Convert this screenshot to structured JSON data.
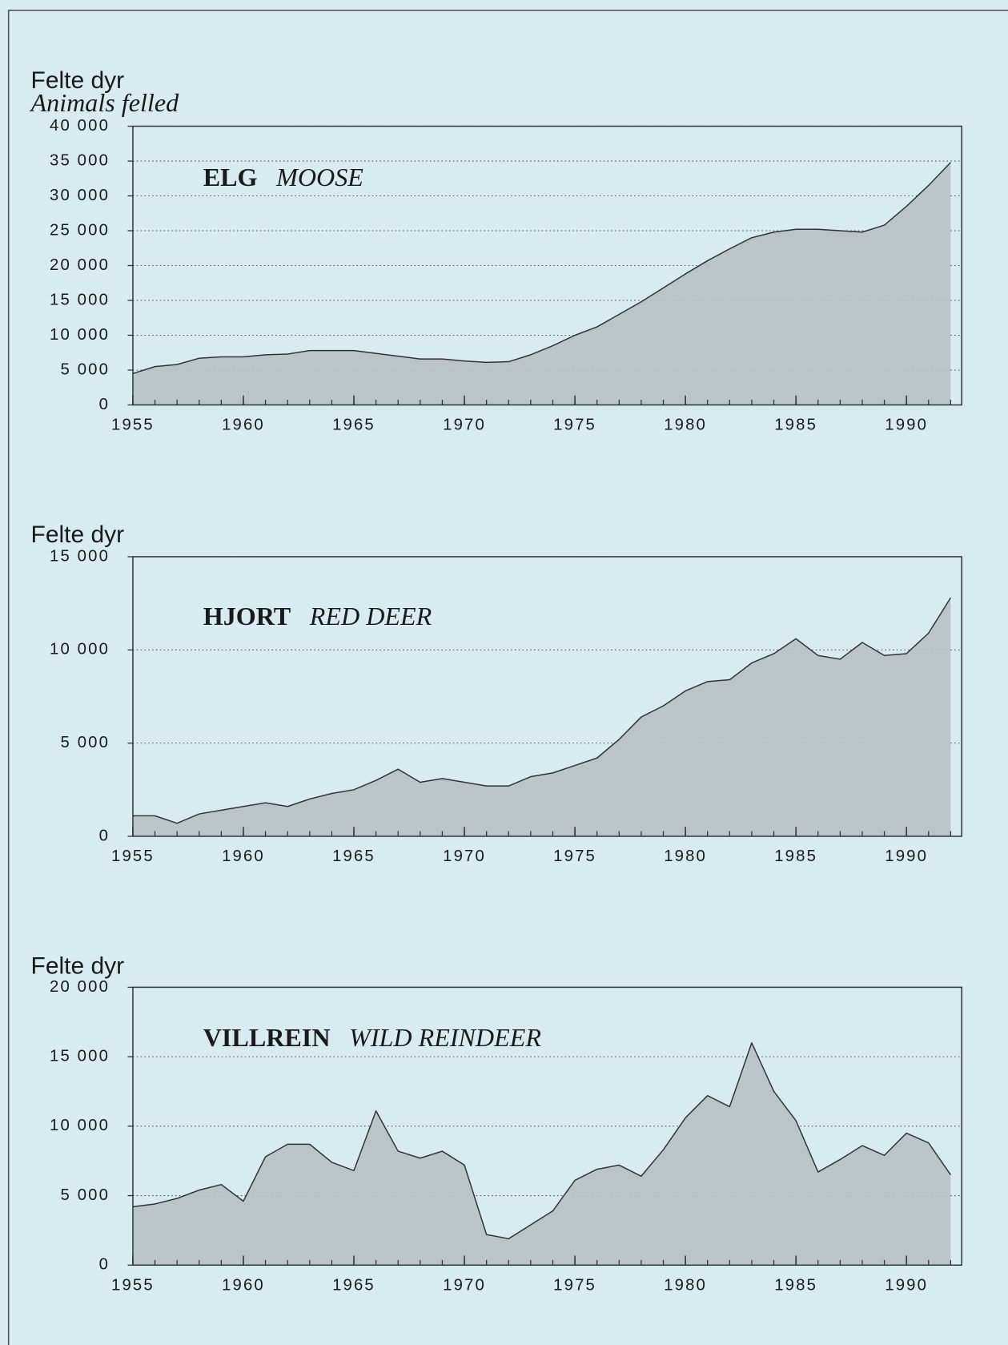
{
  "chart_data": [
    {
      "type": "area",
      "ylabel": "Felte dyr",
      "ylabel_en": "Animals felled",
      "title": "ELG",
      "title_en": "MOOSE",
      "x": [
        1955,
        1956,
        1957,
        1958,
        1959,
        1960,
        1961,
        1962,
        1963,
        1964,
        1965,
        1966,
        1967,
        1968,
        1969,
        1970,
        1971,
        1972,
        1973,
        1974,
        1975,
        1976,
        1977,
        1978,
        1979,
        1980,
        1981,
        1982,
        1983,
        1984,
        1985,
        1986,
        1987,
        1988,
        1989,
        1990,
        1991,
        1992
      ],
      "values": [
        4500,
        5500,
        5800,
        6700,
        6900,
        6900,
        7200,
        7300,
        7800,
        7800,
        7800,
        7400,
        7000,
        6600,
        6600,
        6300,
        6100,
        6200,
        7200,
        8500,
        10000,
        11200,
        13000,
        14800,
        16800,
        18800,
        20700,
        22400,
        24000,
        24800,
        25200,
        25200,
        25000,
        24800,
        25800,
        28500,
        31500,
        34800
      ],
      "xlim": [
        1955,
        1992.5
      ],
      "xticks": [
        1955,
        1960,
        1965,
        1970,
        1975,
        1980,
        1985,
        1990
      ],
      "ylim": [
        0,
        40000
      ],
      "yticks": [
        0,
        {
          "value": 5000,
          "label": "5 000"
        },
        {
          "value": 10000,
          "label": "10 000"
        },
        {
          "value": 15000,
          "label": "15 000"
        },
        {
          "value": 20000,
          "label": "20 000"
        },
        {
          "value": 25000,
          "label": "25 000"
        },
        {
          "value": 30000,
          "label": "30 000"
        },
        {
          "value": 35000,
          "label": "35 000"
        },
        {
          "value": 40000,
          "label": "40 000"
        }
      ],
      "grid": true,
      "color": "#b9c3c6"
    },
    {
      "type": "area",
      "ylabel": "Felte dyr",
      "title": "HJORT",
      "title_en": "RED DEER",
      "x": [
        1955,
        1956,
        1957,
        1958,
        1959,
        1960,
        1961,
        1962,
        1963,
        1964,
        1965,
        1966,
        1967,
        1968,
        1969,
        1970,
        1971,
        1972,
        1973,
        1974,
        1975,
        1976,
        1977,
        1978,
        1979,
        1980,
        1981,
        1982,
        1983,
        1984,
        1985,
        1986,
        1987,
        1988,
        1989,
        1990,
        1991,
        1992
      ],
      "values": [
        1100,
        1100,
        700,
        1200,
        1400,
        1600,
        1800,
        1600,
        2000,
        2300,
        2500,
        3000,
        3600,
        2900,
        3100,
        2900,
        2700,
        2700,
        3200,
        3400,
        3800,
        4200,
        5200,
        6400,
        7000,
        7800,
        8300,
        8400,
        9300,
        9800,
        10600,
        9700,
        9500,
        10400,
        9700,
        9800,
        10900,
        12800
      ],
      "xlim": [
        1955,
        1992.5
      ],
      "xticks": [
        1955,
        1960,
        1965,
        1970,
        1975,
        1980,
        1985,
        1990
      ],
      "ylim": [
        0,
        15000
      ],
      "yticks": [
        0,
        {
          "value": 5000,
          "label": "5 000"
        },
        {
          "value": 10000,
          "label": "10 000"
        },
        {
          "value": 15000,
          "label": "15 000"
        }
      ],
      "grid": true,
      "color": "#b9c3c6"
    },
    {
      "type": "area",
      "ylabel": "Felte dyr",
      "title": "VILLREIN",
      "title_en": "WILD REINDEER",
      "x": [
        1955,
        1956,
        1957,
        1958,
        1959,
        1960,
        1961,
        1962,
        1963,
        1964,
        1965,
        1966,
        1967,
        1968,
        1969,
        1970,
        1971,
        1972,
        1973,
        1974,
        1975,
        1976,
        1977,
        1978,
        1979,
        1980,
        1981,
        1982,
        1983,
        1984,
        1985,
        1986,
        1987,
        1988,
        1989,
        1990,
        1991,
        1992
      ],
      "values": [
        4200,
        4400,
        4800,
        5400,
        5800,
        4600,
        7800,
        8700,
        8700,
        7400,
        6800,
        11100,
        8200,
        7700,
        8200,
        7200,
        2200,
        1900,
        2900,
        3900,
        6100,
        6900,
        7200,
        6400,
        8300,
        10600,
        12200,
        11400,
        16000,
        12500,
        10400,
        6700,
        7600,
        8600,
        7900,
        9500,
        8800,
        6500
      ],
      "xlim": [
        1955,
        1992.5
      ],
      "xticks": [
        1955,
        1960,
        1965,
        1970,
        1975,
        1980,
        1985,
        1990
      ],
      "ylim": [
        0,
        20000
      ],
      "yticks": [
        0,
        {
          "value": 5000,
          "label": "5 000"
        },
        {
          "value": 10000,
          "label": "10 000"
        },
        {
          "value": 15000,
          "label": "15 000"
        },
        {
          "value": 20000,
          "label": "20 000"
        }
      ],
      "grid": true,
      "color": "#b9c3c6"
    }
  ]
}
